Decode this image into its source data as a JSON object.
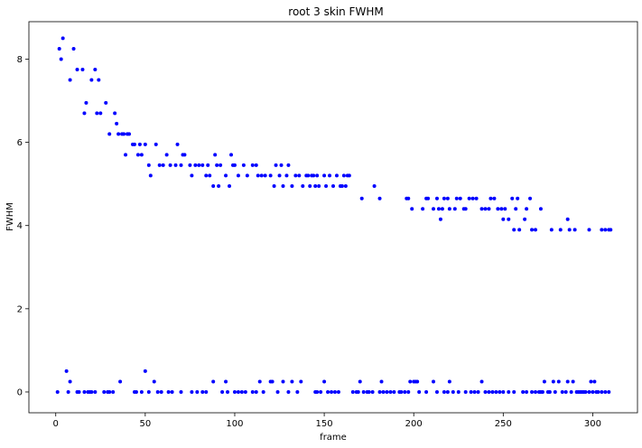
{
  "chart_data": {
    "type": "scatter",
    "title": "root 3 skin FWHM",
    "xlabel": "frame",
    "ylabel": "FWHM",
    "xlim": [
      -15,
      325
    ],
    "ylim": [
      -0.5,
      8.9
    ],
    "xticks": [
      0,
      50,
      100,
      150,
      200,
      250,
      300
    ],
    "yticks": [
      0,
      2,
      4,
      6,
      8
    ],
    "grid": false,
    "marker_color": "#0000ff",
    "series": [
      {
        "name": "FWHM",
        "points": [
          [
            2,
            8.25
          ],
          [
            3,
            8.0
          ],
          [
            4,
            8.5
          ],
          [
            8,
            7.5
          ],
          [
            10,
            8.25
          ],
          [
            12,
            7.75
          ],
          [
            15,
            7.75
          ],
          [
            16,
            6.7
          ],
          [
            17,
            6.95
          ],
          [
            20,
            7.5
          ],
          [
            22,
            7.75
          ],
          [
            23,
            6.7
          ],
          [
            24,
            7.5
          ],
          [
            25,
            6.7
          ],
          [
            28,
            6.95
          ],
          [
            30,
            6.2
          ],
          [
            33,
            6.7
          ],
          [
            34,
            6.45
          ],
          [
            35,
            6.2
          ],
          [
            37,
            6.2
          ],
          [
            38,
            6.2
          ],
          [
            39,
            5.7
          ],
          [
            40,
            6.2
          ],
          [
            41,
            6.2
          ],
          [
            43,
            5.95
          ],
          [
            44,
            5.95
          ],
          [
            46,
            5.7
          ],
          [
            47,
            5.95
          ],
          [
            48,
            5.7
          ],
          [
            50,
            5.95
          ],
          [
            52,
            5.45
          ],
          [
            53,
            5.2
          ],
          [
            56,
            5.95
          ],
          [
            58,
            5.45
          ],
          [
            60,
            5.45
          ],
          [
            62,
            5.7
          ],
          [
            64,
            5.45
          ],
          [
            67,
            5.45
          ],
          [
            68,
            5.95
          ],
          [
            70,
            5.45
          ],
          [
            71,
            5.7
          ],
          [
            72,
            5.7
          ],
          [
            75,
            5.45
          ],
          [
            76,
            5.2
          ],
          [
            78,
            5.45
          ],
          [
            80,
            5.45
          ],
          [
            82,
            5.45
          ],
          [
            84,
            5.2
          ],
          [
            85,
            5.45
          ],
          [
            86,
            5.2
          ],
          [
            88,
            4.95
          ],
          [
            89,
            5.7
          ],
          [
            90,
            5.45
          ],
          [
            91,
            4.95
          ],
          [
            92,
            5.45
          ],
          [
            95,
            5.2
          ],
          [
            97,
            4.95
          ],
          [
            98,
            5.7
          ],
          [
            99,
            5.45
          ],
          [
            100,
            5.45
          ],
          [
            102,
            5.2
          ],
          [
            105,
            5.45
          ],
          [
            107,
            5.2
          ],
          [
            110,
            5.45
          ],
          [
            112,
            5.45
          ],
          [
            113,
            5.2
          ],
          [
            115,
            5.2
          ],
          [
            117,
            5.2
          ],
          [
            120,
            5.2
          ],
          [
            122,
            4.95
          ],
          [
            123,
            5.45
          ],
          [
            125,
            5.2
          ],
          [
            126,
            5.45
          ],
          [
            127,
            4.95
          ],
          [
            129,
            5.2
          ],
          [
            130,
            5.45
          ],
          [
            132,
            4.95
          ],
          [
            134,
            5.2
          ],
          [
            136,
            5.2
          ],
          [
            138,
            4.95
          ],
          [
            140,
            5.2
          ],
          [
            141,
            5.2
          ],
          [
            142,
            4.95
          ],
          [
            143,
            5.2
          ],
          [
            144,
            5.2
          ],
          [
            145,
            4.95
          ],
          [
            146,
            5.2
          ],
          [
            147,
            4.95
          ],
          [
            150,
            5.2
          ],
          [
            151,
            4.95
          ],
          [
            153,
            5.2
          ],
          [
            155,
            4.95
          ],
          [
            157,
            5.2
          ],
          [
            159,
            4.95
          ],
          [
            160,
            4.95
          ],
          [
            161,
            5.2
          ],
          [
            162,
            4.95
          ],
          [
            163,
            5.2
          ],
          [
            164,
            5.2
          ],
          [
            171,
            4.65
          ],
          [
            178,
            4.95
          ],
          [
            181,
            4.65
          ],
          [
            196,
            4.65
          ],
          [
            197,
            4.65
          ],
          [
            199,
            4.4
          ],
          [
            205,
            4.4
          ],
          [
            207,
            4.65
          ],
          [
            208,
            4.65
          ],
          [
            211,
            4.4
          ],
          [
            213,
            4.65
          ],
          [
            214,
            4.4
          ],
          [
            215,
            4.15
          ],
          [
            216,
            4.4
          ],
          [
            217,
            4.65
          ],
          [
            219,
            4.65
          ],
          [
            220,
            4.4
          ],
          [
            223,
            4.4
          ],
          [
            224,
            4.65
          ],
          [
            226,
            4.65
          ],
          [
            228,
            4.4
          ],
          [
            229,
            4.4
          ],
          [
            231,
            4.65
          ],
          [
            233,
            4.65
          ],
          [
            235,
            4.65
          ],
          [
            238,
            4.4
          ],
          [
            240,
            4.4
          ],
          [
            242,
            4.4
          ],
          [
            243,
            4.65
          ],
          [
            245,
            4.65
          ],
          [
            247,
            4.4
          ],
          [
            249,
            4.4
          ],
          [
            250,
            4.15
          ],
          [
            251,
            4.4
          ],
          [
            253,
            4.15
          ],
          [
            255,
            4.65
          ],
          [
            256,
            3.9
          ],
          [
            257,
            4.4
          ],
          [
            258,
            4.65
          ],
          [
            259,
            3.9
          ],
          [
            262,
            4.15
          ],
          [
            263,
            4.4
          ],
          [
            265,
            4.65
          ],
          [
            266,
            3.9
          ],
          [
            268,
            3.9
          ],
          [
            271,
            4.4
          ],
          [
            277,
            3.9
          ],
          [
            282,
            3.9
          ],
          [
            286,
            4.15
          ],
          [
            287,
            3.9
          ],
          [
            290,
            3.9
          ],
          [
            298,
            3.9
          ],
          [
            305,
            3.9
          ],
          [
            307,
            3.9
          ],
          [
            309,
            3.9
          ],
          [
            310,
            3.9
          ],
          [
            1,
            0
          ],
          [
            6,
            0.5
          ],
          [
            7,
            0
          ],
          [
            8,
            0.25
          ],
          [
            12,
            0
          ],
          [
            13,
            0
          ],
          [
            16,
            0
          ],
          [
            18,
            0
          ],
          [
            19,
            0
          ],
          [
            20,
            0
          ],
          [
            22,
            0
          ],
          [
            27,
            0
          ],
          [
            29,
            0
          ],
          [
            30,
            0
          ],
          [
            32,
            0
          ],
          [
            36,
            0.25
          ],
          [
            44,
            0
          ],
          [
            45,
            0
          ],
          [
            48,
            0
          ],
          [
            50,
            0.5
          ],
          [
            52,
            0
          ],
          [
            55,
            0.25
          ],
          [
            57,
            0
          ],
          [
            59,
            0
          ],
          [
            63,
            0
          ],
          [
            65,
            0
          ],
          [
            70,
            0
          ],
          [
            76,
            0
          ],
          [
            79,
            0
          ],
          [
            82,
            0
          ],
          [
            84,
            0
          ],
          [
            88,
            0.25
          ],
          [
            93,
            0
          ],
          [
            95,
            0.25
          ],
          [
            96,
            0
          ],
          [
            100,
            0
          ],
          [
            102,
            0
          ],
          [
            104,
            0
          ],
          [
            106,
            0
          ],
          [
            110,
            0
          ],
          [
            112,
            0
          ],
          [
            114,
            0.25
          ],
          [
            116,
            0
          ],
          [
            120,
            0.25
          ],
          [
            121,
            0.25
          ],
          [
            124,
            0
          ],
          [
            127,
            0.25
          ],
          [
            130,
            0
          ],
          [
            132,
            0.25
          ],
          [
            135,
            0
          ],
          [
            137,
            0.25
          ],
          [
            145,
            0
          ],
          [
            146,
            0
          ],
          [
            148,
            0
          ],
          [
            150,
            0.25
          ],
          [
            152,
            0
          ],
          [
            154,
            0
          ],
          [
            156,
            0
          ],
          [
            158,
            0
          ],
          [
            166,
            0
          ],
          [
            168,
            0
          ],
          [
            169,
            0
          ],
          [
            170,
            0.25
          ],
          [
            172,
            0
          ],
          [
            174,
            0
          ],
          [
            175,
            0
          ],
          [
            177,
            0
          ],
          [
            181,
            0
          ],
          [
            182,
            0.25
          ],
          [
            183,
            0
          ],
          [
            185,
            0
          ],
          [
            187,
            0
          ],
          [
            189,
            0
          ],
          [
            192,
            0
          ],
          [
            193,
            0
          ],
          [
            195,
            0
          ],
          [
            197,
            0
          ],
          [
            198,
            0.25
          ],
          [
            200,
            0.25
          ],
          [
            201,
            0.25
          ],
          [
            202,
            0.25
          ],
          [
            203,
            0
          ],
          [
            207,
            0
          ],
          [
            211,
            0.25
          ],
          [
            213,
            0
          ],
          [
            217,
            0
          ],
          [
            219,
            0
          ],
          [
            220,
            0.25
          ],
          [
            222,
            0
          ],
          [
            225,
            0
          ],
          [
            229,
            0
          ],
          [
            232,
            0
          ],
          [
            234,
            0
          ],
          [
            236,
            0
          ],
          [
            238,
            0.25
          ],
          [
            240,
            0
          ],
          [
            242,
            0
          ],
          [
            244,
            0
          ],
          [
            246,
            0
          ],
          [
            248,
            0
          ],
          [
            250,
            0
          ],
          [
            253,
            0
          ],
          [
            256,
            0
          ],
          [
            261,
            0
          ],
          [
            263,
            0
          ],
          [
            266,
            0
          ],
          [
            268,
            0
          ],
          [
            270,
            0
          ],
          [
            271,
            0
          ],
          [
            272,
            0
          ],
          [
            273,
            0.25
          ],
          [
            275,
            0
          ],
          [
            276,
            0
          ],
          [
            278,
            0.25
          ],
          [
            279,
            0
          ],
          [
            281,
            0.25
          ],
          [
            283,
            0
          ],
          [
            285,
            0
          ],
          [
            286,
            0.25
          ],
          [
            288,
            0
          ],
          [
            289,
            0.25
          ],
          [
            291,
            0
          ],
          [
            292,
            0
          ],
          [
            293,
            0
          ],
          [
            294,
            0
          ],
          [
            295,
            0
          ],
          [
            296,
            0
          ],
          [
            298,
            0
          ],
          [
            299,
            0.25
          ],
          [
            300,
            0
          ],
          [
            301,
            0.25
          ],
          [
            302,
            0
          ],
          [
            303,
            0
          ],
          [
            305,
            0
          ],
          [
            307,
            0
          ],
          [
            309,
            0
          ]
        ]
      }
    ]
  }
}
